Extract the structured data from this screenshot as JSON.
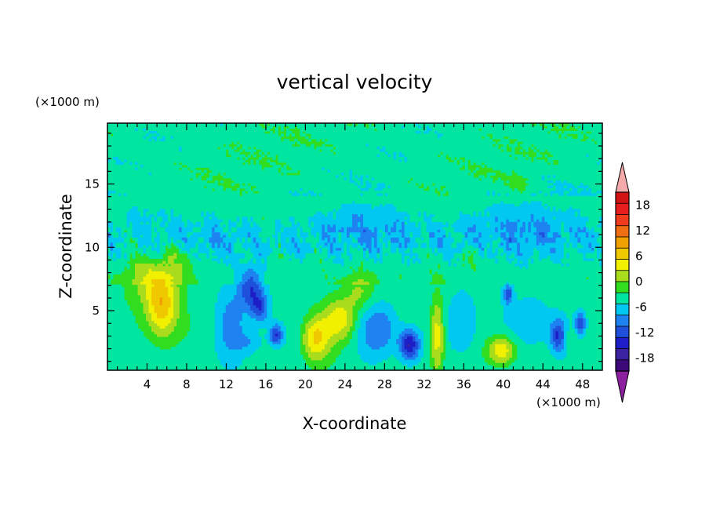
{
  "chart_data": {
    "type": "heatmap",
    "title": "vertical velocity",
    "xlabel": "X-coordinate",
    "ylabel": "Z-coordinate",
    "x_unit_label": "(×1000 m)",
    "y_unit_label": "(×1000 m)",
    "xlim": [
      0,
      50
    ],
    "ylim": [
      0.3,
      19.8
    ],
    "x_ticks": [
      4,
      8,
      12,
      16,
      20,
      24,
      28,
      32,
      36,
      40,
      44,
      48
    ],
    "y_ticks": [
      5,
      10,
      15
    ],
    "x_tick_labels": [
      "4",
      "8",
      "12",
      "16",
      "20",
      "24",
      "28",
      "32",
      "36",
      "40",
      "44",
      "48"
    ],
    "y_tick_labels": [
      "5",
      "10",
      "15"
    ],
    "colorbar": {
      "levels": [
        -21,
        -18,
        -15,
        -12,
        -9,
        -6,
        -3,
        0,
        3,
        6,
        9,
        12,
        15,
        18,
        21
      ],
      "tick_values": [
        18,
        12,
        6,
        0,
        -6,
        -12,
        -18
      ],
      "tick_labels": [
        "18",
        "12",
        "6",
        "0",
        "-6",
        "-12",
        "-18"
      ],
      "colors": [
        "#3c0a78",
        "#3a22a0",
        "#1e1ec8",
        "#1e50dc",
        "#1e82f0",
        "#00c8f0",
        "#00e6a0",
        "#32dc1e",
        "#aadc1e",
        "#f0f000",
        "#f0c800",
        "#f0a000",
        "#f06e14",
        "#f03c1e",
        "#e61e1e",
        "#d21414"
      ],
      "under_color": "#8c1ea0",
      "over_color": "#f4aaaa",
      "extend": "both"
    },
    "features": [
      {
        "x": 5.5,
        "z": 5.3,
        "amp": 13,
        "sx": 1.6,
        "sz": 2.6
      },
      {
        "x": 4.0,
        "z": 7.5,
        "amp": 5,
        "sx": 2.2,
        "sz": 2.0
      },
      {
        "x": 7.5,
        "z": 9.0,
        "amp": 4,
        "sx": 1.5,
        "sz": 1.5
      },
      {
        "x": 14.5,
        "z": 6.8,
        "amp": -10,
        "sx": 1.2,
        "sz": 1.8
      },
      {
        "x": 15.5,
        "z": 5.2,
        "amp": -9,
        "sx": 0.9,
        "sz": 1.2
      },
      {
        "x": 17.0,
        "z": 3.1,
        "amp": -11,
        "sx": 0.7,
        "sz": 0.9
      },
      {
        "x": 12.5,
        "z": 4.0,
        "amp": -5,
        "sx": 1.5,
        "sz": 3.0
      },
      {
        "x": 14.5,
        "z": 2.5,
        "amp": -4,
        "sx": 1.5,
        "sz": 1.0
      },
      {
        "x": 21.0,
        "z": 2.8,
        "amp": 11,
        "sx": 1.4,
        "sz": 1.8
      },
      {
        "x": 23.5,
        "z": 4.3,
        "amp": 9,
        "sx": 1.6,
        "sz": 1.6
      },
      {
        "x": 25.5,
        "z": 6.5,
        "amp": 5,
        "sx": 1.5,
        "sz": 1.5
      },
      {
        "x": 27.5,
        "z": 3.5,
        "amp": -7,
        "sx": 2.0,
        "sz": 2.0
      },
      {
        "x": 30.5,
        "z": 2.3,
        "amp": -14,
        "sx": 1.0,
        "sz": 1.2
      },
      {
        "x": 33.3,
        "z": 3.0,
        "amp": 10,
        "sx": 0.7,
        "sz": 3.0
      },
      {
        "x": 36.0,
        "z": 4.0,
        "amp": -5,
        "sx": 1.5,
        "sz": 2.5
      },
      {
        "x": 39.8,
        "z": 1.9,
        "amp": 11,
        "sx": 1.4,
        "sz": 1.1
      },
      {
        "x": 40.5,
        "z": 6.3,
        "amp": -9,
        "sx": 0.5,
        "sz": 0.8
      },
      {
        "x": 43.0,
        "z": 4.0,
        "amp": -5,
        "sx": 2.0,
        "sz": 2.0
      },
      {
        "x": 45.5,
        "z": 3.0,
        "amp": -10,
        "sx": 0.8,
        "sz": 1.3
      },
      {
        "x": 47.8,
        "z": 4.0,
        "amp": -10,
        "sx": 0.5,
        "sz": 0.8
      },
      {
        "x": 46.8,
        "z": 2.7,
        "amp": 3,
        "sx": 0.6,
        "sz": 0.9
      },
      {
        "x": 41.5,
        "z": 15.0,
        "amp": 3,
        "sx": 1.2,
        "sz": 1.0
      },
      {
        "x": 37.0,
        "z": 9.5,
        "amp": 3,
        "sx": 1.0,
        "sz": 1.0
      },
      {
        "x": 26.0,
        "z": 12.0,
        "amp": -4,
        "sx": 5.0,
        "sz": 2.0
      },
      {
        "x": 42.0,
        "z": 12.0,
        "amp": -4,
        "sx": 6.0,
        "sz": 2.5
      },
      {
        "x": 10.0,
        "z": 11.0,
        "amp": -2,
        "sx": 4.0,
        "sz": 2.0
      },
      {
        "x": 4.0,
        "z": 13.0,
        "amp": -2,
        "sx": 3.0,
        "sz": 1.5
      }
    ]
  }
}
